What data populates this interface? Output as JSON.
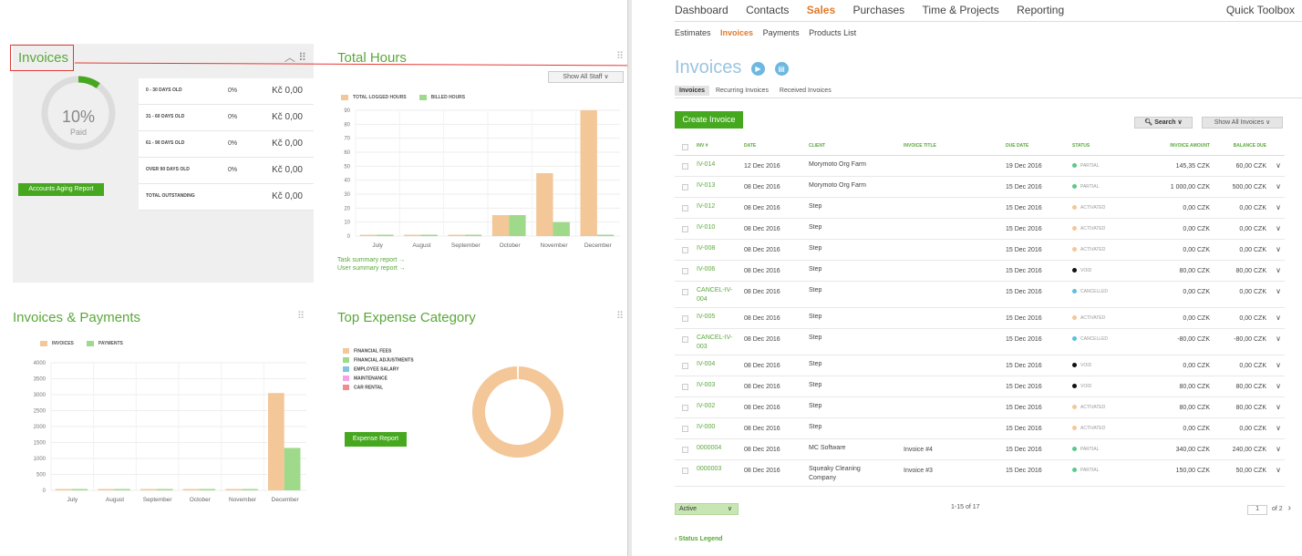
{
  "dashboard": {
    "invoices_title": "Invoices",
    "ring_pct": "10%",
    "ring_label": "Paid",
    "aging_button": "Accounts Aging Report",
    "aging_rows": [
      {
        "label": "0 - 30 DAYS OLD",
        "pct": "0%",
        "value": "Kč 0,00"
      },
      {
        "label": "31 - 60 DAYS OLD",
        "pct": "0%",
        "value": "Kč 0,00"
      },
      {
        "label": "61 - 90 DAYS OLD",
        "pct": "0%",
        "value": "Kč 0,00"
      },
      {
        "label": "OVER 90 DAYS OLD",
        "pct": "0%",
        "value": "Kč 0,00"
      },
      {
        "label": "TOTAL OUTSTANDING",
        "pct": "",
        "value": "Kč 0,00"
      }
    ],
    "total_hours_title": "Total Hours",
    "show_all_staff": "Show All Staff",
    "task_link": "Task summary report →",
    "user_link": "User summary report →",
    "inv_pay_title": "Invoices & Payments",
    "top_expense_title": "Top Expense Category",
    "expense_button": "Expense Report",
    "expense_legend": [
      "FINANCIAL FEES",
      "FINANCIAL ADJUSTMENTS",
      "EMPLOYEE SALARY",
      "MAINTENANCE",
      "CAR RENTAL"
    ]
  },
  "chart_data": [
    {
      "type": "bar",
      "title": "Total Hours",
      "categories": [
        "July",
        "August",
        "September",
        "October",
        "November",
        "December"
      ],
      "series": [
        {
          "name": "TOTAL LOGGED HOURS",
          "values": [
            0,
            0,
            0,
            15,
            45,
            90
          ]
        },
        {
          "name": "BILLED HOURS",
          "values": [
            0,
            0,
            0,
            15,
            10,
            0
          ]
        }
      ],
      "ylim": [
        0,
        90
      ],
      "yticks": [
        0,
        10,
        20,
        30,
        40,
        50,
        60,
        70,
        80,
        90
      ]
    },
    {
      "type": "bar",
      "title": "Invoices & Payments",
      "categories": [
        "July",
        "August",
        "September",
        "October",
        "November",
        "December"
      ],
      "series": [
        {
          "name": "INVOICES",
          "values": [
            0,
            0,
            0,
            0,
            0,
            3050
          ]
        },
        {
          "name": "PAYMENTS",
          "values": [
            0,
            0,
            0,
            0,
            0,
            1330
          ]
        }
      ],
      "ylim": [
        0,
        4000
      ],
      "yticks": [
        0,
        500,
        1000,
        1500,
        2000,
        2500,
        3000,
        3500,
        4000
      ]
    },
    {
      "type": "pie",
      "title": "Top Expense Category",
      "labels": [
        "FINANCIAL FEES",
        "FINANCIAL ADJUSTMENTS",
        "EMPLOYEE SALARY",
        "MAINTENANCE",
        "CAR RENTAL"
      ],
      "values": [
        100,
        0,
        0,
        0,
        0
      ]
    }
  ],
  "colors": {
    "orange": "#f3c798",
    "green": "#9fd98a",
    "brand_green": "#46a81f",
    "blue": "#7fc4e0",
    "pink": "#f5a3e6",
    "red": "#f28b8b"
  },
  "app": {
    "nav": [
      "Dashboard",
      "Contacts",
      "Sales",
      "Purchases",
      "Time & Projects",
      "Reporting"
    ],
    "quick_toolbox": "Quick Toolbox",
    "subnav": [
      "Estimates",
      "Invoices",
      "Payments",
      "Products List"
    ],
    "page_title": "Invoices",
    "tabs": [
      "Invoices",
      "Recurring Invoices",
      "Received Invoices"
    ],
    "create_button": "Create Invoice",
    "search_button": "Search",
    "show_all_button": "Show All Invoices",
    "columns": [
      "INV #",
      "DATE",
      "CLIENT",
      "INVOICE TITLE",
      "DUE DATE",
      "STATUS",
      "INVOICE AMOUNT",
      "BALANCE DUE"
    ],
    "rows": [
      {
        "inv": "IV-014",
        "date": "12 Dec 2016",
        "client": "Morymoto Org Farm",
        "title": "",
        "due": "19 Dec 2016",
        "status": "PARTIAL",
        "amount": "145,35 CZK",
        "balance": "60,00 CZK"
      },
      {
        "inv": "IV-013",
        "date": "08 Dec 2016",
        "client": "Morymoto Org Farm",
        "title": "",
        "due": "15 Dec 2016",
        "status": "PARTIAL",
        "amount": "1 000,00 CZK",
        "balance": "500,00 CZK"
      },
      {
        "inv": "IV-012",
        "date": "08 Dec 2016",
        "client": "Step",
        "title": "",
        "due": "15 Dec 2016",
        "status": "ACTIVATED",
        "amount": "0,00 CZK",
        "balance": "0,00 CZK"
      },
      {
        "inv": "IV-010",
        "date": "08 Dec 2016",
        "client": "Step",
        "title": "",
        "due": "15 Dec 2016",
        "status": "ACTIVATED",
        "amount": "0,00 CZK",
        "balance": "0,00 CZK"
      },
      {
        "inv": "IV-008",
        "date": "08 Dec 2016",
        "client": "Step",
        "title": "",
        "due": "15 Dec 2016",
        "status": "ACTIVATED",
        "amount": "0,00 CZK",
        "balance": "0,00 CZK"
      },
      {
        "inv": "IV-006",
        "date": "08 Dec 2016",
        "client": "Step",
        "title": "",
        "due": "15 Dec 2016",
        "status": "VOID",
        "amount": "80,00 CZK",
        "balance": "80,00 CZK"
      },
      {
        "inv": "CANCEL-IV-004",
        "date": "08 Dec 2016",
        "client": "Step",
        "title": "",
        "due": "15 Dec 2016",
        "status": "CANCELLED",
        "amount": "0,00 CZK",
        "balance": "0,00 CZK"
      },
      {
        "inv": "IV-005",
        "date": "08 Dec 2016",
        "client": "Step",
        "title": "",
        "due": "15 Dec 2016",
        "status": "ACTIVATED",
        "amount": "0,00 CZK",
        "balance": "0,00 CZK"
      },
      {
        "inv": "CANCEL-IV-003",
        "date": "08 Dec 2016",
        "client": "Step",
        "title": "",
        "due": "15 Dec 2016",
        "status": "CANCELLED",
        "amount": "-80,00 CZK",
        "balance": "-80,00 CZK"
      },
      {
        "inv": "IV-004",
        "date": "08 Dec 2016",
        "client": "Step",
        "title": "",
        "due": "15 Dec 2016",
        "status": "VOID",
        "amount": "0,00 CZK",
        "balance": "0,00 CZK"
      },
      {
        "inv": "IV-003",
        "date": "08 Dec 2016",
        "client": "Step",
        "title": "",
        "due": "15 Dec 2016",
        "status": "VOID",
        "amount": "80,00 CZK",
        "balance": "80,00 CZK"
      },
      {
        "inv": "IV-002",
        "date": "08 Dec 2016",
        "client": "Step",
        "title": "",
        "due": "15 Dec 2016",
        "status": "ACTIVATED",
        "amount": "80,00 CZK",
        "balance": "80,00 CZK"
      },
      {
        "inv": "IV-000",
        "date": "08 Dec 2016",
        "client": "Step",
        "title": "",
        "due": "15 Dec 2016",
        "status": "ACTIVATED",
        "amount": "0,00 CZK",
        "balance": "0,00 CZK"
      },
      {
        "inv": "0000004",
        "date": "08 Dec 2016",
        "client": "MC Software",
        "title": "Invoice #4",
        "due": "15 Dec 2016",
        "status": "PARTIAL",
        "amount": "340,00 CZK",
        "balance": "240,00 CZK"
      },
      {
        "inv": "0000003",
        "date": "08 Dec 2016",
        "client": "Squeaky Cleaning Company",
        "title": "Invoice #3",
        "due": "15 Dec 2016",
        "status": "PARTIAL",
        "amount": "150,00 CZK",
        "balance": "50,00 CZK"
      }
    ],
    "status_colors": {
      "PARTIAL": "#5cc88a",
      "ACTIVATED": "#f3c798",
      "VOID": "#111111",
      "CANCELLED": "#5bc0de"
    },
    "active_filter": "Active",
    "range_text": "1-15 of 17",
    "page_current": "1",
    "page_of": "of 2",
    "status_legend": "Status Legend"
  }
}
